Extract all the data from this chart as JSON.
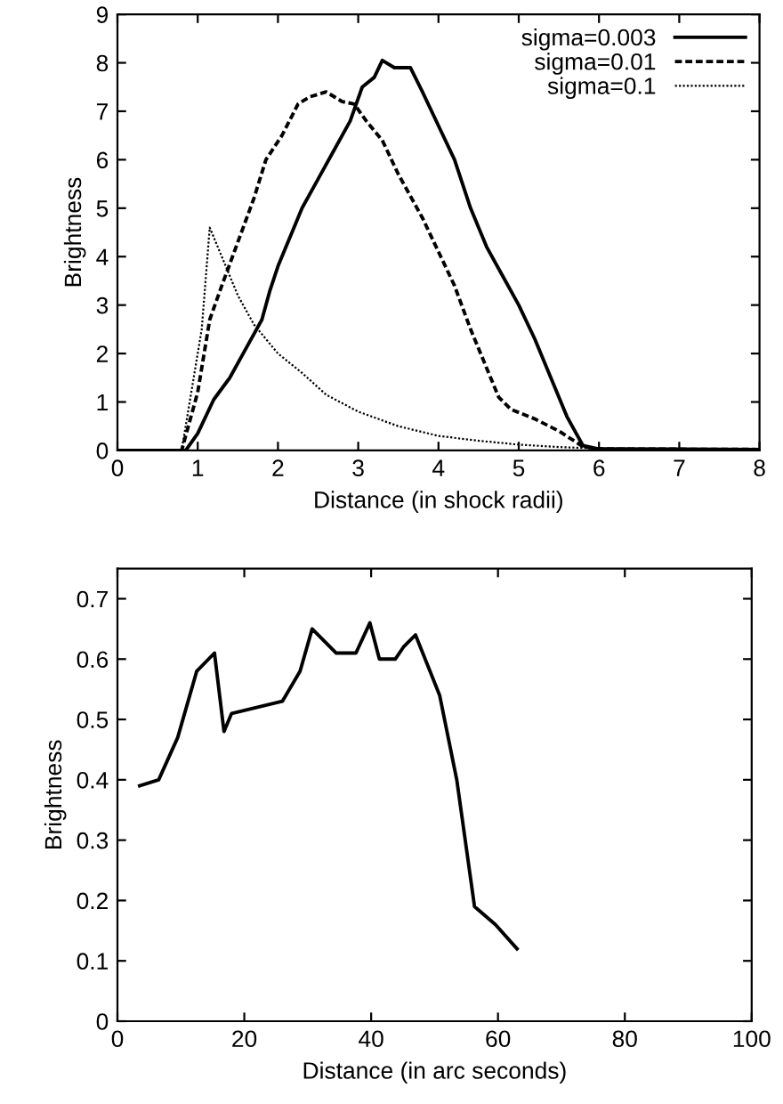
{
  "chart_data": [
    {
      "type": "line",
      "xlabel": "Distance (in shock radii)",
      "ylabel": "Brightness",
      "xlim": [
        0,
        8
      ],
      "ylim": [
        0,
        9
      ],
      "xticks": [
        0,
        1,
        2,
        3,
        4,
        5,
        6,
        7,
        8
      ],
      "yticks": [
        0,
        1,
        2,
        3,
        4,
        5,
        6,
        7,
        8,
        9
      ],
      "legend": "top right",
      "grid": false,
      "marker": "none",
      "series": [
        {
          "name": "sigma=0.003",
          "color": "#000000",
          "line_style": "solid",
          "x": [
            0,
            0.85,
            1,
            1.2,
            1.4,
            1.6,
            1.8,
            1.9,
            2,
            2.1,
            2.3,
            2.5,
            2.7,
            2.9,
            3.05,
            3.2,
            3.3,
            3.45,
            3.65,
            3.8,
            4,
            4.2,
            4.4,
            4.6,
            4.8,
            5,
            5.2,
            5.4,
            5.6,
            5.8,
            6,
            8
          ],
          "values": [
            0,
            0,
            0.35,
            1.05,
            1.5,
            2.1,
            2.7,
            3.3,
            3.8,
            4.2,
            5.0,
            5.6,
            6.2,
            6.8,
            7.5,
            7.7,
            8.05,
            7.9,
            7.9,
            7.4,
            6.7,
            6.0,
            5.0,
            4.2,
            3.6,
            3.0,
            2.3,
            1.5,
            0.7,
            0.1,
            0.03,
            0.02
          ]
        },
        {
          "name": "sigma=0.01",
          "color": "#000000",
          "line_style": "dashed",
          "x": [
            0,
            0.8,
            1,
            1.15,
            1.3,
            1.5,
            1.7,
            1.85,
            2.05,
            2.25,
            2.4,
            2.6,
            2.8,
            2.95,
            3.1,
            3.3,
            3.5,
            3.8,
            4,
            4.2,
            4.4,
            4.6,
            4.75,
            4.9,
            5.2,
            5.5,
            5.8,
            6,
            8
          ],
          "values": [
            0,
            0,
            1.2,
            2.7,
            3.4,
            4.3,
            5.2,
            6.0,
            6.5,
            7.15,
            7.3,
            7.4,
            7.2,
            7.15,
            6.8,
            6.4,
            5.7,
            4.8,
            4.1,
            3.4,
            2.5,
            1.7,
            1.1,
            0.85,
            0.65,
            0.4,
            0.08,
            0.03,
            0.02
          ]
        },
        {
          "name": "sigma=0.1",
          "color": "#000000",
          "line_style": "dotted",
          "x": [
            0,
            0.8,
            1.05,
            1.15,
            1.3,
            1.5,
            1.7,
            2,
            2.3,
            2.6,
            3,
            3.5,
            4,
            4.5,
            5,
            5.5,
            6,
            8
          ],
          "values": [
            0,
            0,
            2.5,
            4.6,
            4.0,
            3.2,
            2.6,
            2.0,
            1.6,
            1.15,
            0.8,
            0.5,
            0.3,
            0.2,
            0.12,
            0.07,
            0.04,
            0.02
          ]
        }
      ]
    },
    {
      "type": "line",
      "xlabel": "Distance (in arc seconds)",
      "ylabel": "Brightness",
      "xlim": [
        0,
        100
      ],
      "ylim": [
        0,
        0.75
      ],
      "xticks": [
        0,
        20,
        40,
        60,
        80,
        100
      ],
      "yticks": [
        0,
        0.1,
        0.2,
        0.3,
        0.4,
        0.5,
        0.6,
        0.7
      ],
      "legend": false,
      "grid": false,
      "marker": "none",
      "series": [
        {
          "color": "#000000",
          "line_style": "solid",
          "x": [
            3.5,
            6.5,
            9.5,
            12.5,
            15.3,
            16.8,
            18,
            26,
            28.8,
            30.7,
            34.5,
            37.6,
            39.8,
            41.3,
            43.8,
            45.1,
            47,
            50.8,
            53.5,
            56.3,
            59.6,
            63
          ],
          "values": [
            0.39,
            0.4,
            0.47,
            0.58,
            0.61,
            0.48,
            0.51,
            0.53,
            0.58,
            0.65,
            0.61,
            0.61,
            0.66,
            0.6,
            0.6,
            0.62,
            0.64,
            0.54,
            0.4,
            0.19,
            0.16,
            0.12
          ]
        }
      ]
    }
  ]
}
